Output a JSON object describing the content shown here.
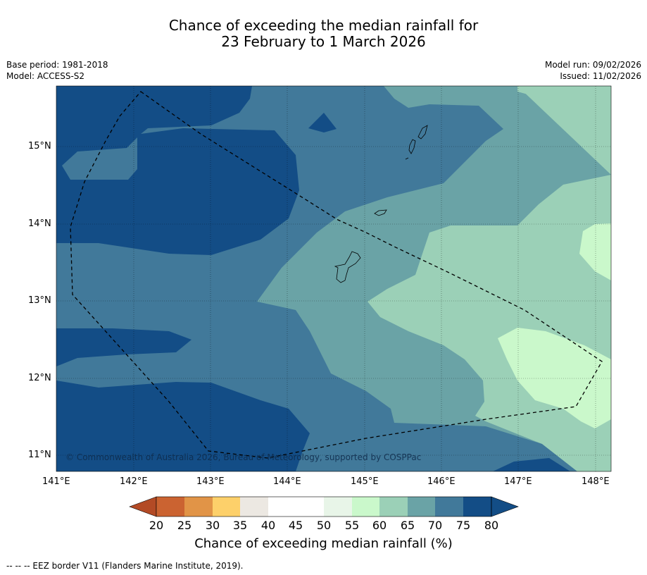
{
  "title": {
    "line1": "Chance of exceeding the median rainfall for",
    "line2": "23 February to 1 March 2026"
  },
  "meta": {
    "base_period": "Base period: 1981-2018",
    "model": "Model: ACCESS-S2",
    "model_run": "Model run: 09/02/2026",
    "issued": "Issued: 11/02/2026"
  },
  "axes": {
    "lon_labels": [
      "141°E",
      "142°E",
      "143°E",
      "144°E",
      "145°E",
      "146°E",
      "147°E",
      "148°E"
    ],
    "lat_labels": [
      "15°N",
      "14°N",
      "13°N",
      "12°N",
      "11°N"
    ],
    "lon_range": [
      141,
      148.2
    ],
    "lat_range": [
      10.8,
      15.8
    ]
  },
  "copyright": "© Commonwealth of Australia 2026, Bureau of Meteorology, supported by COSPPac",
  "colorbar": {
    "title": "Chance of exceeding median rainfall (%)",
    "labels": [
      "20",
      "25",
      "30",
      "35",
      "40",
      "45",
      "50",
      "55",
      "60",
      "65",
      "70",
      "75",
      "80"
    ],
    "colors": [
      "#b34a25",
      "#cb6331",
      "#e19447",
      "#fdd06a",
      "#ece8e2",
      "#ffffff",
      "#ffffff",
      "#e8f5e8",
      "#caf8cb",
      "#9bd0b7",
      "#6aa3a6",
      "#41799a",
      "#134d86"
    ]
  },
  "map_colors": {
    "c80": "#134d86",
    "c75": "#41799a",
    "c70": "#6aa3a6",
    "c65": "#9bd0b7",
    "c60": "#caf8cb"
  },
  "legend_footer": "-- -- -- EEZ border V11 (Flanders Marine Institute, 2019)."
}
